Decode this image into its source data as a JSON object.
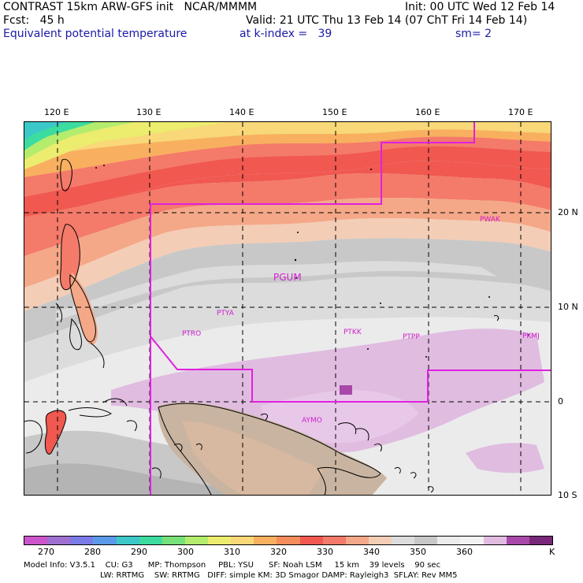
{
  "header": {
    "line1_left": "CONTRAST 15km ARW-GFS init   NCAR/MMMM",
    "line1_right": "Init: 00 UTC Wed 12 Feb 14",
    "line2_left": "Fcst:   45 h",
    "line2_right": "Valid: 21 UTC Thu 13 Feb 14 (07 ChT Fri 14 Feb 14)",
    "line3_left": "Equivalent potential temperature",
    "line3_mid": "at k-index =   39",
    "line3_right": "sm= 2"
  },
  "axes": {
    "lon_labels": [
      "120 E",
      "130 E",
      "140 E",
      "150 E",
      "160 E",
      "170 E"
    ],
    "lat_labels": [
      "20 N",
      "10 N",
      "0",
      "10 S"
    ]
  },
  "stations": [
    "PWAK",
    "PGUM",
    "PTYA",
    "PTRO",
    "PTKK",
    "PTPP",
    "PKMJ",
    "AYMO"
  ],
  "colorbar": {
    "labels": [
      "270",
      "280",
      "290",
      "300",
      "310",
      "320",
      "330",
      "340",
      "350",
      "360"
    ],
    "unit": "K",
    "colors": [
      "#cc55cc",
      "#a070d0",
      "#7b7be8",
      "#5a9ae8",
      "#3cc8c8",
      "#3cdca0",
      "#78e078",
      "#b4ec6e",
      "#ecec6e",
      "#f8d878",
      "#f8b060",
      "#f48c5c",
      "#f05850",
      "#f47a6a",
      "#f4a888",
      "#f4cdb6",
      "#dcdcdc",
      "#c8c8c8",
      "#ebebeb",
      "#f2f2f2",
      "#e0bce0",
      "#a848a8",
      "#782878"
    ]
  },
  "model_info": {
    "line1": "Model Info: V3.5.1    CU: G3      MP: Thompson     PBL: YSU      SF: Noah LSM     15 km    39 levels    90 sec",
    "line2": "LW: RRTMG    SW: RRTMG   DIFF: simple KM: 3D Smagor DAMP: Rayleigh3  SFLAY: Rev MM5"
  }
}
